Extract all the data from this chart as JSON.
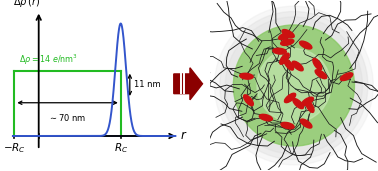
{
  "fig_width": 3.78,
  "fig_height": 1.71,
  "dpi": 100,
  "bg_color": "#ffffff",
  "box_color": "#22bb22",
  "gaussian_color": "#3355cc",
  "arrow_color": "#8b0000",
  "axis_color": "#000000",
  "annotation_color": "#000000",
  "green_color": "#88c864",
  "green_light": "#b8dca0",
  "halo_color": "#d8d8d8",
  "red_color": "#cc1111",
  "chain_color": "#1a1a1a"
}
